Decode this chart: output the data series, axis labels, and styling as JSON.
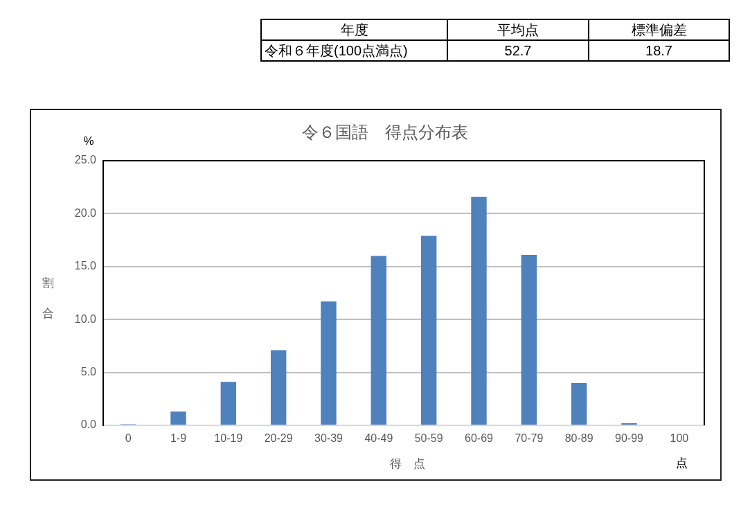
{
  "chart_data": {
    "type": "bar",
    "title": "令６国語　得点分布表",
    "xlabel": "得　点",
    "ylabel": "割合",
    "categories": [
      "0",
      "1-9",
      "10-19",
      "20-29",
      "30-39",
      "40-49",
      "50-59",
      "60-69",
      "70-79",
      "80-89",
      "90-99",
      "100"
    ],
    "values": [
      0.1,
      1.3,
      4.1,
      7.1,
      11.7,
      16.0,
      17.9,
      21.6,
      16.1,
      4.0,
      0.2,
      0.0
    ],
    "color": "#4f81bd",
    "ylim": [
      0,
      25
    ],
    "yticks": [
      {
        "value": 0,
        "label": "0.0"
      },
      {
        "value": 5,
        "label": "5.0"
      },
      {
        "value": 10,
        "label": "10.0"
      },
      {
        "value": 15,
        "label": "15.0"
      },
      {
        "value": 20,
        "label": "20.0"
      },
      {
        "value": 25,
        "label": "25.0"
      }
    ],
    "grid": "y",
    "annotations": [
      "%",
      "点",
      "年度",
      "平均点",
      "標準偏差",
      "令和６年度(100点満点)",
      "52.7",
      "18.7"
    ]
  }
}
